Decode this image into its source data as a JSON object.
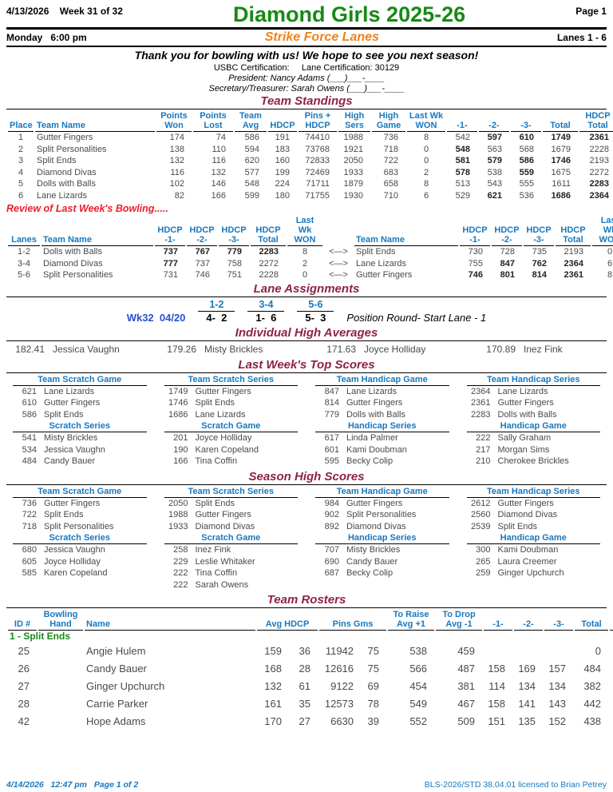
{
  "colors": {
    "title_green": "#168a16",
    "house_orange": "#ef8219",
    "section_maroon": "#8e2345",
    "header_blue": "#1878be",
    "alert_red": "#ee1b2a",
    "week_royal_blue": "#2b4fd0",
    "body_gray": "#4a4a4a"
  },
  "header": {
    "date": "4/13/2026    Week 31 of 32",
    "title": "Diamond Girls 2025-26",
    "page": "Page 1",
    "day_time": "Monday   6:00 pm",
    "house": "Strike Force Lanes",
    "lanes": "Lanes 1 - 6",
    "thanks": "Thank you for bowling with us! We hope to see you next season!",
    "certification": "USBC Certification:     Lane Certification: 30129",
    "president": "President: Nancy Adams (___)___-____",
    "secretary": "Secretary/Treasurer: Sarah Owens (___)___-____"
  },
  "standings": {
    "title": "Team Standings",
    "headers": [
      "Place",
      "Team Name",
      "Points\nWon",
      "Points\nLost",
      "Team\nAvg",
      "HDCP",
      "Pins +\nHDCP",
      "High\nSers",
      "High\nGame",
      "Last Wk\nWON",
      "-1-",
      "-2-",
      "-3-",
      "Total",
      "HDCP\nTotal"
    ],
    "rows": [
      {
        "place": "1",
        "team": "Gutter Fingers",
        "won": "174",
        "lost": "74",
        "avg": "586",
        "hdcp": "191",
        "pins": "74410",
        "sers": "1988",
        "game": "736",
        "lastwk": "8",
        "g1": "542",
        "g2": "597",
        "g3": "610",
        "total": "1749",
        "hdcp_total": "2361",
        "bold": [
          "g2",
          "g3",
          "total",
          "hdcp_total"
        ]
      },
      {
        "place": "2",
        "team": "Split Personalities",
        "won": "138",
        "lost": "110",
        "avg": "594",
        "hdcp": "183",
        "pins": "73768",
        "sers": "1921",
        "game": "718",
        "lastwk": "0",
        "g1": "548",
        "g2": "563",
        "g3": "568",
        "total": "1679",
        "hdcp_total": "2228",
        "bold": [
          "g1"
        ]
      },
      {
        "place": "3",
        "team": "Split Ends",
        "won": "132",
        "lost": "116",
        "avg": "620",
        "hdcp": "160",
        "pins": "72833",
        "sers": "2050",
        "game": "722",
        "lastwk": "0",
        "g1": "581",
        "g2": "579",
        "g3": "586",
        "total": "1746",
        "hdcp_total": "2193",
        "bold": [
          "g1",
          "g2",
          "g3",
          "total"
        ]
      },
      {
        "place": "4",
        "team": "Diamond Divas",
        "won": "116",
        "lost": "132",
        "avg": "577",
        "hdcp": "199",
        "pins": "72469",
        "sers": "1933",
        "game": "683",
        "lastwk": "2",
        "g1": "578",
        "g2": "538",
        "g3": "559",
        "total": "1675",
        "hdcp_total": "2272",
        "bold": [
          "g1",
          "g3"
        ]
      },
      {
        "place": "5",
        "team": "Dolls with Balls",
        "won": "102",
        "lost": "146",
        "avg": "548",
        "hdcp": "224",
        "pins": "71711",
        "sers": "1879",
        "game": "658",
        "lastwk": "8",
        "g1": "513",
        "g2": "543",
        "g3": "555",
        "total": "1611",
        "hdcp_total": "2283",
        "bold": [
          "hdcp_total"
        ]
      },
      {
        "place": "6",
        "team": "Lane Lizards",
        "won": "82",
        "lost": "166",
        "avg": "599",
        "hdcp": "180",
        "pins": "71755",
        "sers": "1930",
        "game": "710",
        "lastwk": "6",
        "g1": "529",
        "g2": "621",
        "g3": "536",
        "total": "1686",
        "hdcp_total": "2364",
        "bold": [
          "g2",
          "total",
          "hdcp_total"
        ]
      }
    ]
  },
  "review": {
    "title": "Review of Last Week's Bowling.....",
    "headers": {
      "lanes": "Lanes",
      "team": "Team Name",
      "g1": "HDCP\n-1-",
      "g2": "HDCP\n-2-",
      "g3": "HDCP\n-3-",
      "total": "HDCP\nTotal",
      "won": "Last Wk\nWON"
    },
    "arrow": "<—>",
    "matchups": [
      {
        "lanes": "1-2",
        "left": {
          "team": "Dolls with Balls",
          "g1": "737",
          "g2": "767",
          "g3": "779",
          "total": "2283",
          "won": "8",
          "bold": [
            "g1",
            "g2",
            "g3",
            "total"
          ]
        },
        "right": {
          "team": "Split Ends",
          "g1": "730",
          "g2": "728",
          "g3": "735",
          "total": "2193",
          "won": "0",
          "bold": []
        }
      },
      {
        "lanes": "3-4",
        "left": {
          "team": "Diamond Divas",
          "g1": "777",
          "g2": "737",
          "g3": "758",
          "total": "2272",
          "won": "2",
          "bold": [
            "g1"
          ]
        },
        "right": {
          "team": "Lane Lizards",
          "g1": "755",
          "g2": "847",
          "g3": "762",
          "total": "2364",
          "won": "6",
          "bold": [
            "g2",
            "g3",
            "total"
          ]
        }
      },
      {
        "lanes": "5-6",
        "left": {
          "team": "Split Personalities",
          "g1": "731",
          "g2": "746",
          "g3": "751",
          "total": "2228",
          "won": "0",
          "bold": []
        },
        "right": {
          "team": "Gutter Fingers",
          "g1": "746",
          "g2": "801",
          "g3": "814",
          "total": "2361",
          "won": "8",
          "bold": [
            "g1",
            "g2",
            "g3",
            "total"
          ]
        }
      }
    ]
  },
  "lane_assignments": {
    "title": "Lane Assignments",
    "week": "Wk32  04/20",
    "pairs": [
      {
        "lanes": "1-2",
        "match": "4-  2"
      },
      {
        "lanes": "3-4",
        "match": "1-  6"
      },
      {
        "lanes": "5-6",
        "match": "5-  3"
      }
    ],
    "note": "Position Round- Start Lane - 1"
  },
  "high_averages": {
    "title": "Individual High Averages",
    "entries": [
      {
        "avg": "182.41",
        "name": "Jessica Vaughn"
      },
      {
        "avg": "179.26",
        "name": "Misty Brickles"
      },
      {
        "avg": "171.63",
        "name": "Joyce Holliday"
      },
      {
        "avg": "170.89",
        "name": "Inez Fink"
      }
    ]
  },
  "last_week": {
    "title": "Last Week's Top Scores",
    "columns": [
      [
        {
          "label": "Team Scratch Game",
          "entries": [
            [
              "621",
              "Lane Lizards"
            ],
            [
              "610",
              "Gutter Fingers"
            ],
            [
              "586",
              "Split Ends"
            ]
          ]
        },
        {
          "label": "Scratch Series",
          "entries": [
            [
              "541",
              "Misty Brickles"
            ],
            [
              "534",
              "Jessica Vaughn"
            ],
            [
              "484",
              "Candy Bauer"
            ]
          ]
        }
      ],
      [
        {
          "label": "Team Scratch Series",
          "entries": [
            [
              "1749",
              "Gutter Fingers"
            ],
            [
              "1746",
              "Split Ends"
            ],
            [
              "1686",
              "Lane Lizards"
            ]
          ]
        },
        {
          "label": "Scratch Game",
          "entries": [
            [
              "201",
              "Joyce Holliday"
            ],
            [
              "190",
              "Karen Copeland"
            ],
            [
              "166",
              "Tina Coffin"
            ]
          ]
        }
      ],
      [
        {
          "label": "Team Handicap Game",
          "entries": [
            [
              "847",
              "Lane Lizards"
            ],
            [
              "814",
              "Gutter Fingers"
            ],
            [
              "779",
              "Dolls with Balls"
            ]
          ]
        },
        {
          "label": "Handicap Series",
          "entries": [
            [
              "617",
              "Linda Palmer"
            ],
            [
              "601",
              "Kami Doubman"
            ],
            [
              "595",
              "Becky Colip"
            ]
          ]
        }
      ],
      [
        {
          "label": "Team Handicap Series",
          "entries": [
            [
              "2364",
              "Lane Lizards"
            ],
            [
              "2361",
              "Gutter Fingers"
            ],
            [
              "2283",
              "Dolls with Balls"
            ]
          ]
        },
        {
          "label": "Handicap Game",
          "entries": [
            [
              "222",
              "Sally Graham"
            ],
            [
              "217",
              "Morgan Sims"
            ],
            [
              "210",
              "Cherokee Brickles"
            ]
          ]
        }
      ]
    ]
  },
  "season": {
    "title": "Season High Scores",
    "columns": [
      [
        {
          "label": "Team Scratch Game",
          "entries": [
            [
              "736",
              "Gutter Fingers"
            ],
            [
              "722",
              "Split Ends"
            ],
            [
              "718",
              "Split Personalities"
            ]
          ]
        },
        {
          "label": "Scratch Series",
          "entries": [
            [
              "680",
              "Jessica Vaughn"
            ],
            [
              "605",
              "Joyce Holliday"
            ],
            [
              "585",
              "Karen Copeland"
            ]
          ]
        }
      ],
      [
        {
          "label": "Team Scratch Series",
          "entries": [
            [
              "2050",
              "Split Ends"
            ],
            [
              "1988",
              "Gutter Fingers"
            ],
            [
              "1933",
              "Diamond Divas"
            ]
          ]
        },
        {
          "label": "Scratch Game",
          "entries": [
            [
              "258",
              "Inez Fink"
            ],
            [
              "229",
              "Leslie Whitaker"
            ],
            [
              "222",
              "Tina Coffin"
            ],
            [
              "222",
              "Sarah Owens"
            ]
          ]
        }
      ],
      [
        {
          "label": "Team Handicap Game",
          "entries": [
            [
              "984",
              "Gutter Fingers"
            ],
            [
              "902",
              "Split Personalities"
            ],
            [
              "892",
              "Diamond Divas"
            ]
          ]
        },
        {
          "label": "Handicap Series",
          "entries": [
            [
              "707",
              "Misty Brickles"
            ],
            [
              "690",
              "Candy Bauer"
            ],
            [
              "687",
              "Becky Colip"
            ]
          ]
        }
      ],
      [
        {
          "label": "Team Handicap Series",
          "entries": [
            [
              "2612",
              "Gutter Fingers"
            ],
            [
              "2560",
              "Diamond Divas"
            ],
            [
              "2539",
              "Split Ends"
            ]
          ]
        },
        {
          "label": "Handicap Game",
          "entries": [
            [
              "300",
              "Kami Doubman"
            ],
            [
              "265",
              "Laura Creemer"
            ],
            [
              "259",
              "Ginger Upchurch"
            ]
          ]
        }
      ]
    ]
  },
  "rosters": {
    "title": "Team Rosters",
    "headers": [
      "ID #",
      "Bowling\nHand",
      "Name",
      "Avg HDCP",
      "Pins  Gms",
      "To Raise\nAvg +1",
      "To Drop\nAvg -1",
      "-1-",
      "-2-",
      "-3-",
      "Total",
      "HDCP\nTotal"
    ],
    "group": "1 - Split Ends",
    "rows": [
      {
        "id": "25",
        "hand": "",
        "name": "Angie Hulem",
        "avg": "159",
        "hdcp": "36",
        "pins": "11942",
        "gms": "75",
        "raise": "538",
        "drop": "459",
        "g1": "",
        "g2": "",
        "g3": "",
        "total": "0",
        "hdcp_total": "0"
      },
      {
        "id": "26",
        "hand": "",
        "name": "Candy Bauer",
        "avg": "168",
        "hdcp": "28",
        "pins": "12616",
        "gms": "75",
        "raise": "566",
        "drop": "487",
        "g1": "158",
        "g2": "169",
        "g3": "157",
        "total": "484",
        "hdcp_total": "568"
      },
      {
        "id": "27",
        "hand": "",
        "name": "Ginger Upchurch",
        "avg": "132",
        "hdcp": "61",
        "pins": "9122",
        "gms": "69",
        "raise": "454",
        "drop": "381",
        "g1": "114",
        "g2": "134",
        "g3": "134",
        "total": "382",
        "hdcp_total": "565"
      },
      {
        "id": "28",
        "hand": "",
        "name": "Carrie Parker",
        "avg": "161",
        "hdcp": "35",
        "pins": "12573",
        "gms": "78",
        "raise": "549",
        "drop": "467",
        "g1": "158",
        "g2": "141",
        "g3": "143",
        "total": "442",
        "hdcp_total": "547"
      },
      {
        "id": "42",
        "hand": "",
        "name": "Hope Adams",
        "avg": "170",
        "hdcp": "27",
        "pins": "6630",
        "gms": "39",
        "raise": "552",
        "drop": "509",
        "g1": "151",
        "g2": "135",
        "g3": "152",
        "total": "438",
        "hdcp_total": "513"
      }
    ]
  },
  "footer": {
    "left": "4/14/2026   12:47 pm   Page 1 of 2",
    "right": "BLS-2026/STD 38.04.01 licensed to Brian Petrey"
  }
}
